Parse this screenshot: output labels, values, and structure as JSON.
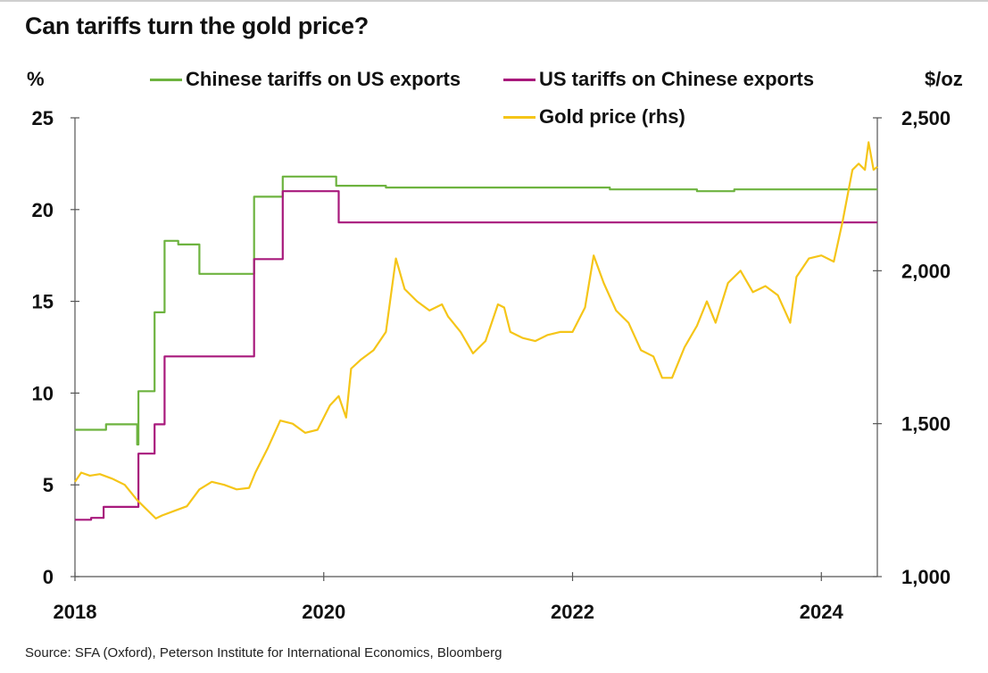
{
  "title": "Can tariffs turn the gold price?",
  "source": "Source: SFA (Oxford), Peterson Institute for International Economics, Bloomberg",
  "chart_data": {
    "type": "line",
    "title": "Can tariffs turn the gold price?",
    "left_unit": "%",
    "right_unit": "$/oz",
    "x_ticks": [
      "2018",
      "2020",
      "2022",
      "2024"
    ],
    "xlim": [
      2018.0,
      2024.45
    ],
    "y_left": {
      "lim": [
        0,
        25
      ],
      "ticks": [
        "0",
        "5",
        "10",
        "15",
        "20",
        "25"
      ]
    },
    "y_right": {
      "lim": [
        1000,
        2500
      ],
      "ticks": [
        "1,000",
        "1,500",
        "2,000",
        "2,500"
      ]
    },
    "grid": false,
    "legend_position": "top",
    "series": [
      {
        "name": "Chinese tariffs on US exports",
        "axis": "left",
        "color": "#6db33f",
        "step": true,
        "points": [
          [
            2018.0,
            8.0
          ],
          [
            2018.25,
            8.3
          ],
          [
            2018.5,
            7.2
          ],
          [
            2018.51,
            10.1
          ],
          [
            2018.64,
            14.4
          ],
          [
            2018.72,
            18.3
          ],
          [
            2018.83,
            18.1
          ],
          [
            2019.0,
            16.5
          ],
          [
            2019.44,
            20.7
          ],
          [
            2019.67,
            21.8
          ],
          [
            2020.1,
            21.3
          ],
          [
            2020.5,
            21.2
          ],
          [
            2022.0,
            21.2
          ],
          [
            2022.3,
            21.1
          ],
          [
            2023.0,
            21.0
          ],
          [
            2023.3,
            21.1
          ],
          [
            2024.45,
            21.1
          ]
        ]
      },
      {
        "name": "US tariffs on Chinese exports",
        "axis": "left",
        "color": "#a8197c",
        "step": true,
        "points": [
          [
            2018.0,
            3.1
          ],
          [
            2018.13,
            3.2
          ],
          [
            2018.23,
            3.8
          ],
          [
            2018.51,
            6.7
          ],
          [
            2018.64,
            8.3
          ],
          [
            2018.72,
            12.0
          ],
          [
            2019.44,
            17.3
          ],
          [
            2019.67,
            21.0
          ],
          [
            2020.12,
            19.3
          ],
          [
            2022.0,
            19.3
          ],
          [
            2023.0,
            19.3
          ],
          [
            2024.45,
            19.3
          ]
        ]
      },
      {
        "name": "Gold price (rhs)",
        "axis": "right",
        "color": "#f5c518",
        "step": false,
        "points": [
          [
            2018.0,
            1310
          ],
          [
            2018.05,
            1340
          ],
          [
            2018.12,
            1330
          ],
          [
            2018.2,
            1335
          ],
          [
            2018.3,
            1320
          ],
          [
            2018.4,
            1300
          ],
          [
            2018.5,
            1250
          ],
          [
            2018.6,
            1210
          ],
          [
            2018.65,
            1190
          ],
          [
            2018.7,
            1200
          ],
          [
            2018.8,
            1215
          ],
          [
            2018.9,
            1230
          ],
          [
            2019.0,
            1285
          ],
          [
            2019.1,
            1310
          ],
          [
            2019.2,
            1300
          ],
          [
            2019.3,
            1285
          ],
          [
            2019.4,
            1290
          ],
          [
            2019.45,
            1340
          ],
          [
            2019.55,
            1420
          ],
          [
            2019.65,
            1510
          ],
          [
            2019.75,
            1500
          ],
          [
            2019.85,
            1470
          ],
          [
            2019.95,
            1480
          ],
          [
            2020.05,
            1560
          ],
          [
            2020.12,
            1590
          ],
          [
            2020.18,
            1520
          ],
          [
            2020.22,
            1680
          ],
          [
            2020.3,
            1710
          ],
          [
            2020.4,
            1740
          ],
          [
            2020.5,
            1800
          ],
          [
            2020.58,
            2040
          ],
          [
            2020.65,
            1940
          ],
          [
            2020.75,
            1900
          ],
          [
            2020.85,
            1870
          ],
          [
            2020.95,
            1890
          ],
          [
            2021.0,
            1850
          ],
          [
            2021.1,
            1800
          ],
          [
            2021.2,
            1730
          ],
          [
            2021.3,
            1770
          ],
          [
            2021.4,
            1890
          ],
          [
            2021.45,
            1880
          ],
          [
            2021.5,
            1800
          ],
          [
            2021.6,
            1780
          ],
          [
            2021.7,
            1770
          ],
          [
            2021.8,
            1790
          ],
          [
            2021.9,
            1800
          ],
          [
            2022.0,
            1800
          ],
          [
            2022.1,
            1880
          ],
          [
            2022.17,
            2050
          ],
          [
            2022.25,
            1960
          ],
          [
            2022.35,
            1870
          ],
          [
            2022.45,
            1830
          ],
          [
            2022.55,
            1740
          ],
          [
            2022.65,
            1720
          ],
          [
            2022.72,
            1650
          ],
          [
            2022.8,
            1650
          ],
          [
            2022.9,
            1750
          ],
          [
            2023.0,
            1820
          ],
          [
            2023.08,
            1900
          ],
          [
            2023.15,
            1830
          ],
          [
            2023.25,
            1960
          ],
          [
            2023.35,
            2000
          ],
          [
            2023.45,
            1930
          ],
          [
            2023.55,
            1950
          ],
          [
            2023.65,
            1920
          ],
          [
            2023.75,
            1830
          ],
          [
            2023.8,
            1980
          ],
          [
            2023.9,
            2040
          ],
          [
            2024.0,
            2050
          ],
          [
            2024.1,
            2030
          ],
          [
            2024.17,
            2160
          ],
          [
            2024.25,
            2330
          ],
          [
            2024.3,
            2350
          ],
          [
            2024.35,
            2330
          ],
          [
            2024.38,
            2420
          ],
          [
            2024.42,
            2330
          ],
          [
            2024.45,
            2340
          ]
        ]
      }
    ]
  }
}
